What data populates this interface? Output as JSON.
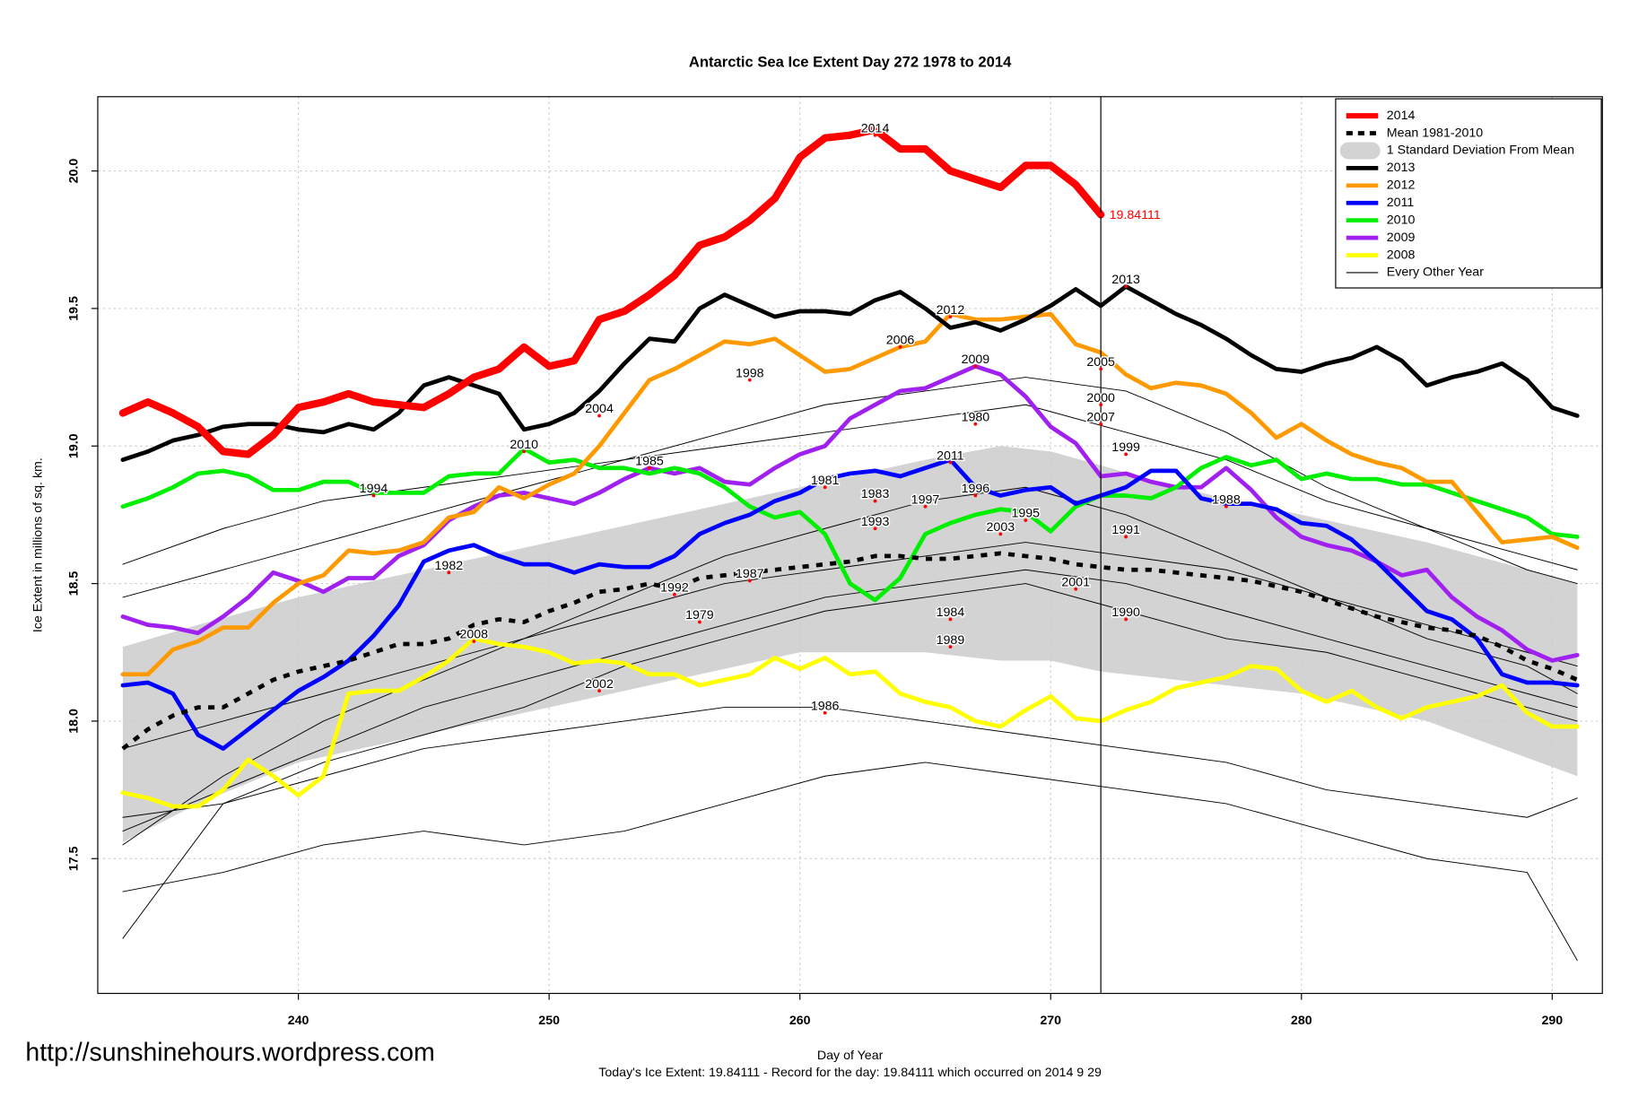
{
  "chart_data": {
    "type": "line",
    "title": "Antarctic Sea Ice Extent Day 272 1978 to 2014",
    "xlabel": "Day of Year",
    "ylabel": "Ice Extent in millions of sq. km.",
    "subtitle": "Today's Ice Extent: 19.84111  - Record for the day: 19.84111 which occurred on 2014 9 29",
    "watermark": "http://sunshinehours.wordpress.com",
    "xlim": [
      232,
      292
    ],
    "ylim": [
      17.01,
      20.27
    ],
    "xticks": [
      240,
      250,
      260,
      270,
      280,
      290
    ],
    "yticks": [
      17.5,
      {
        "value": 18,
        "label": "18.0"
      },
      18.5,
      {
        "value": 19,
        "label": "19.0"
      },
      19.5,
      {
        "value": 20,
        "label": "20.0"
      }
    ],
    "grid": true,
    "legend": "topright",
    "vline": 272,
    "x": [
      233,
      234,
      235,
      236,
      237,
      238,
      239,
      240,
      241,
      242,
      243,
      244,
      245,
      246,
      247,
      248,
      249,
      250,
      251,
      252,
      253,
      254,
      255,
      256,
      257,
      258,
      259,
      260,
      261,
      262,
      263,
      264,
      265,
      266,
      267,
      268,
      269,
      270,
      271,
      272,
      273,
      274,
      275,
      276,
      277,
      278,
      279,
      280,
      281,
      282,
      283,
      284,
      285,
      286,
      287,
      288,
      289,
      290,
      291
    ],
    "band": {
      "name": "1 Standard Deviation From Mean",
      "color": "#d3d3d3",
      "x": [
        233,
        236,
        240,
        245,
        250,
        255,
        260,
        265,
        268,
        270,
        272,
        275,
        280,
        285,
        291
      ],
      "upper": [
        18.27,
        18.35,
        18.45,
        18.55,
        18.65,
        18.75,
        18.85,
        18.95,
        19.0,
        18.98,
        18.93,
        18.85,
        18.75,
        18.65,
        18.5
      ],
      "lower": [
        17.56,
        17.7,
        17.85,
        17.95,
        18.05,
        18.15,
        18.25,
        18.25,
        18.22,
        18.22,
        18.18,
        18.15,
        18.1,
        18.0,
        17.8
      ]
    },
    "thin_lines": {
      "name": "Every Other Year",
      "color": "#000000",
      "x": [
        233,
        237,
        241,
        245,
        249,
        253,
        257,
        261,
        265,
        269,
        273,
        277,
        281,
        285,
        289,
        291
      ],
      "lines": [
        [
          17.21,
          17.7,
          17.85,
          17.95,
          18.05,
          18.2,
          18.3,
          18.4,
          18.45,
          18.5,
          18.4,
          18.3,
          18.25,
          18.15,
          18.05,
          18.0
        ],
        [
          17.38,
          17.45,
          17.55,
          17.6,
          17.55,
          17.6,
          17.7,
          17.8,
          17.85,
          17.8,
          17.75,
          17.7,
          17.6,
          17.5,
          17.45,
          17.13
        ],
        [
          18.57,
          18.7,
          18.8,
          18.85,
          18.9,
          18.95,
          19.0,
          19.05,
          19.1,
          19.15,
          19.05,
          18.95,
          18.8,
          18.7,
          18.6,
          18.55
        ],
        [
          17.55,
          17.8,
          18.0,
          18.15,
          18.3,
          18.45,
          18.6,
          18.7,
          18.8,
          18.85,
          18.75,
          18.6,
          18.45,
          18.3,
          18.2,
          18.1
        ],
        [
          17.6,
          17.75,
          17.9,
          18.05,
          18.15,
          18.25,
          18.35,
          18.45,
          18.5,
          18.55,
          18.5,
          18.4,
          18.3,
          18.2,
          18.1,
          18.05
        ],
        [
          17.65,
          17.7,
          17.8,
          17.9,
          17.95,
          18.0,
          18.05,
          18.05,
          18.0,
          17.95,
          17.9,
          17.85,
          17.75,
          17.7,
          17.65,
          17.72
        ],
        [
          18.45,
          18.55,
          18.65,
          18.75,
          18.85,
          18.95,
          19.05,
          19.15,
          19.2,
          19.25,
          19.2,
          19.05,
          18.85,
          18.7,
          18.55,
          18.5
        ],
        [
          17.9,
          18.0,
          18.1,
          18.2,
          18.3,
          18.4,
          18.5,
          18.55,
          18.6,
          18.65,
          18.6,
          18.55,
          18.45,
          18.35,
          18.25,
          18.2
        ]
      ]
    },
    "series": [
      {
        "name": "2008",
        "color": "#ffff00",
        "values": [
          17.74,
          17.72,
          17.69,
          17.69,
          17.75,
          17.86,
          17.8,
          17.73,
          17.8,
          18.1,
          18.11,
          18.11,
          18.16,
          18.22,
          18.3,
          18.28,
          18.27,
          18.25,
          18.21,
          18.22,
          18.21,
          18.17,
          18.17,
          18.13,
          18.15,
          18.17,
          18.23,
          18.19,
          18.23,
          18.17,
          18.18,
          18.1,
          18.07,
          18.05,
          18.0,
          17.98,
          18.04,
          18.09,
          18.01,
          18.0,
          18.04,
          18.07,
          18.12,
          18.14,
          18.16,
          18.2,
          18.19,
          18.11,
          18.07,
          18.11,
          18.05,
          18.01,
          18.05,
          18.07,
          18.09,
          18.13,
          18.03,
          17.98,
          17.98
        ]
      },
      {
        "name": "2009",
        "color": "#a020f0",
        "values": [
          18.38,
          18.35,
          18.34,
          18.32,
          18.38,
          18.45,
          18.54,
          18.51,
          18.47,
          18.52,
          18.52,
          18.6,
          18.64,
          18.73,
          18.78,
          18.82,
          18.83,
          18.81,
          18.79,
          18.83,
          18.88,
          18.92,
          18.9,
          18.92,
          18.87,
          18.86,
          18.92,
          18.97,
          19.0,
          19.1,
          19.15,
          19.2,
          19.21,
          19.25,
          19.29,
          19.26,
          19.18,
          19.07,
          19.01,
          18.89,
          18.9,
          18.87,
          18.85,
          18.85,
          18.92,
          18.84,
          18.74,
          18.67,
          18.64,
          18.62,
          18.58,
          18.53,
          18.55,
          18.45,
          18.38,
          18.33,
          18.26,
          18.22,
          18.24
        ]
      },
      {
        "name": "2010",
        "color": "#00ee00",
        "values": [
          18.78,
          18.81,
          18.85,
          18.9,
          18.91,
          18.89,
          18.84,
          18.84,
          18.87,
          18.87,
          18.83,
          18.83,
          18.83,
          18.89,
          18.9,
          18.9,
          18.99,
          18.94,
          18.95,
          18.92,
          18.92,
          18.9,
          18.92,
          18.9,
          18.85,
          18.78,
          18.74,
          18.76,
          18.68,
          18.5,
          18.44,
          18.52,
          18.68,
          18.72,
          18.75,
          18.77,
          18.76,
          18.69,
          18.78,
          18.82,
          18.82,
          18.81,
          18.85,
          18.92,
          18.96,
          18.93,
          18.95,
          18.88,
          18.9,
          18.88,
          18.88,
          18.86,
          18.86,
          18.83,
          18.8,
          18.77,
          18.74,
          18.68,
          18.67
        ]
      },
      {
        "name": "2011",
        "color": "#0000ff",
        "values": [
          18.13,
          18.14,
          18.1,
          17.95,
          17.9,
          17.97,
          18.04,
          18.11,
          18.16,
          18.22,
          18.31,
          18.42,
          18.58,
          18.62,
          18.64,
          18.6,
          18.57,
          18.57,
          18.54,
          18.57,
          18.56,
          18.56,
          18.6,
          18.68,
          18.72,
          18.75,
          18.8,
          18.83,
          18.88,
          18.9,
          18.91,
          18.89,
          18.92,
          18.95,
          18.85,
          18.82,
          18.84,
          18.85,
          18.79,
          18.82,
          18.85,
          18.91,
          18.91,
          18.81,
          18.79,
          18.79,
          18.77,
          18.72,
          18.71,
          18.66,
          18.58,
          18.49,
          18.4,
          18.37,
          18.3,
          18.17,
          18.14,
          18.14,
          18.13
        ]
      },
      {
        "name": "2012",
        "color": "#ff9900",
        "values": [
          18.17,
          18.17,
          18.26,
          18.29,
          18.34,
          18.34,
          18.43,
          18.5,
          18.53,
          18.62,
          18.61,
          18.62,
          18.65,
          18.74,
          18.76,
          18.85,
          18.81,
          18.86,
          18.9,
          19.0,
          19.12,
          19.24,
          19.28,
          19.33,
          19.38,
          19.37,
          19.39,
          19.33,
          19.27,
          19.28,
          19.32,
          19.36,
          19.38,
          19.48,
          19.46,
          19.46,
          19.47,
          19.48,
          19.37,
          19.34,
          19.26,
          19.21,
          19.23,
          19.22,
          19.19,
          19.12,
          19.03,
          19.08,
          19.02,
          18.97,
          18.94,
          18.92,
          18.87,
          18.87,
          18.76,
          18.65,
          18.66,
          18.67,
          18.63
        ]
      },
      {
        "name": "2013",
        "color": "#000000",
        "values": [
          18.95,
          18.98,
          19.02,
          19.04,
          19.07,
          19.08,
          19.08,
          19.06,
          19.05,
          19.08,
          19.06,
          19.12,
          19.22,
          19.25,
          19.22,
          19.19,
          19.06,
          19.08,
          19.12,
          19.2,
          19.3,
          19.39,
          19.38,
          19.5,
          19.55,
          19.51,
          19.47,
          19.49,
          19.49,
          19.48,
          19.53,
          19.56,
          19.5,
          19.43,
          19.45,
          19.42,
          19.46,
          19.51,
          19.57,
          19.51,
          19.58,
          19.53,
          19.48,
          19.44,
          19.39,
          19.33,
          19.28,
          19.27,
          19.3,
          19.32,
          19.36,
          19.31,
          19.22,
          19.25,
          19.27,
          19.3,
          19.24,
          19.14,
          19.11
        ]
      },
      {
        "name": "Mean 1981-2010",
        "color": "#000000",
        "linestyle": "dashed",
        "values": [
          17.9,
          17.97,
          18.02,
          18.05,
          18.05,
          18.1,
          18.15,
          18.18,
          18.2,
          18.22,
          18.25,
          18.28,
          18.28,
          18.3,
          18.35,
          18.37,
          18.36,
          18.4,
          18.43,
          18.47,
          18.48,
          18.5,
          18.48,
          18.52,
          18.53,
          18.54,
          18.55,
          18.56,
          18.57,
          18.58,
          18.6,
          18.6,
          18.59,
          18.59,
          18.6,
          18.61,
          18.6,
          18.59,
          18.57,
          18.56,
          18.55,
          18.55,
          18.54,
          18.53,
          18.52,
          18.51,
          18.49,
          18.47,
          18.44,
          18.41,
          18.38,
          18.36,
          18.34,
          18.33,
          18.31,
          18.27,
          18.22,
          18.19,
          18.15
        ]
      },
      {
        "name": "2014",
        "color": "#ff0000",
        "values": [
          19.12,
          19.16,
          19.12,
          19.07,
          18.98,
          18.97,
          19.04,
          19.14,
          19.16,
          19.19,
          19.16,
          19.15,
          19.14,
          19.19,
          19.25,
          19.28,
          19.36,
          19.29,
          19.31,
          19.46,
          19.49,
          19.55,
          19.62,
          19.73,
          19.76,
          19.82,
          19.9,
          20.05,
          20.12,
          20.13,
          20.15,
          20.08,
          20.08,
          20.0,
          19.97,
          19.94,
          20.02,
          20.02,
          19.95,
          19.84111,
          null,
          null,
          null,
          null,
          null,
          null,
          null,
          null,
          null,
          null,
          null,
          null,
          null,
          null,
          null,
          null,
          null,
          null,
          null
        ]
      }
    ],
    "end_label": {
      "x": 272,
      "y": 19.84111,
      "label": "19.84111"
    },
    "annotations": [
      {
        "text": "2014",
        "x": 263,
        "y": 20.13
      },
      {
        "text": "2013",
        "x": 273,
        "y": 19.58
      },
      {
        "text": "2012",
        "x": 266,
        "y": 19.47
      },
      {
        "text": "2006",
        "x": 264,
        "y": 19.36
      },
      {
        "text": "2009",
        "x": 267,
        "y": 19.29
      },
      {
        "text": "2005",
        "x": 272,
        "y": 19.28
      },
      {
        "text": "1998",
        "x": 258,
        "y": 19.24
      },
      {
        "text": "2000",
        "x": 272,
        "y": 19.15
      },
      {
        "text": "2004",
        "x": 252,
        "y": 19.11
      },
      {
        "text": "2007",
        "x": 272,
        "y": 19.08
      },
      {
        "text": "1980",
        "x": 267,
        "y": 19.08
      },
      {
        "text": "2010",
        "x": 249,
        "y": 18.98
      },
      {
        "text": "1999",
        "x": 273,
        "y": 18.97
      },
      {
        "text": "2011",
        "x": 266,
        "y": 18.94
      },
      {
        "text": "1985",
        "x": 254,
        "y": 18.92
      },
      {
        "text": "1981",
        "x": 261,
        "y": 18.85
      },
      {
        "text": "1994",
        "x": 243,
        "y": 18.82
      },
      {
        "text": "1996",
        "x": 267,
        "y": 18.82
      },
      {
        "text": "1983",
        "x": 263,
        "y": 18.8
      },
      {
        "text": "1997",
        "x": 265,
        "y": 18.78
      },
      {
        "text": "1988",
        "x": 277,
        "y": 18.78
      },
      {
        "text": "1995",
        "x": 269,
        "y": 18.73
      },
      {
        "text": "1993",
        "x": 263,
        "y": 18.7
      },
      {
        "text": "2003",
        "x": 268,
        "y": 18.68
      },
      {
        "text": "1991",
        "x": 273,
        "y": 18.67
      },
      {
        "text": "1982",
        "x": 246,
        "y": 18.54
      },
      {
        "text": "1987",
        "x": 258,
        "y": 18.51
      },
      {
        "text": "2001",
        "x": 271,
        "y": 18.48
      },
      {
        "text": "1992",
        "x": 255,
        "y": 18.46
      },
      {
        "text": "1990",
        "x": 273,
        "y": 18.37
      },
      {
        "text": "1979",
        "x": 256,
        "y": 18.36
      },
      {
        "text": "1984",
        "x": 266,
        "y": 18.37
      },
      {
        "text": "2008",
        "x": 247,
        "y": 18.29
      },
      {
        "text": "1989",
        "x": 266,
        "y": 18.27
      },
      {
        "text": "2002",
        "x": 252,
        "y": 18.11
      },
      {
        "text": "1986",
        "x": 261,
        "y": 18.03
      }
    ]
  }
}
